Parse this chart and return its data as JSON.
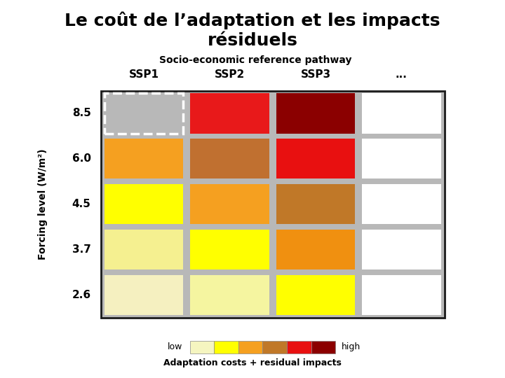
{
  "title": "Le coût de l’adaptation et les impacts\nrésiduels",
  "subtitle": "Socio-economic reference pathway",
  "col_labels": [
    "SSP1",
    "SSP2",
    "SSP3",
    "..."
  ],
  "row_labels": [
    "8.5",
    "6.0",
    "4.5",
    "3.7",
    "2.6"
  ],
  "ylabel": "Forcing level (W/m²)",
  "legend_label": "Adaptation costs + residual impacts",
  "legend_low": "low",
  "legend_high": "high",
  "grid_bg": "#b8b8b8",
  "cell_colors": [
    [
      "dashed",
      "#e8191a",
      "#8b0000",
      "#ffffff"
    ],
    [
      "#f5a020",
      "#c07030",
      "#e81010",
      "#ffffff"
    ],
    [
      "#ffff00",
      "#f5a020",
      "#c07828",
      "#ffffff"
    ],
    [
      "#f5f090",
      "#ffff00",
      "#f09010",
      "#ffffff"
    ],
    [
      "#f5f0c0",
      "#f5f5a0",
      "#ffff00",
      "#ffffff"
    ]
  ],
  "legend_colors": [
    "#f5f5c0",
    "#ffff00",
    "#f5a020",
    "#c07828",
    "#e81010",
    "#8b0000"
  ],
  "title_fontsize": 18,
  "subtitle_fontsize": 10,
  "col_label_fontsize": 11,
  "row_label_fontsize": 11,
  "ylabel_fontsize": 10,
  "legend_fontsize": 9,
  "legend_label_fontsize": 9
}
